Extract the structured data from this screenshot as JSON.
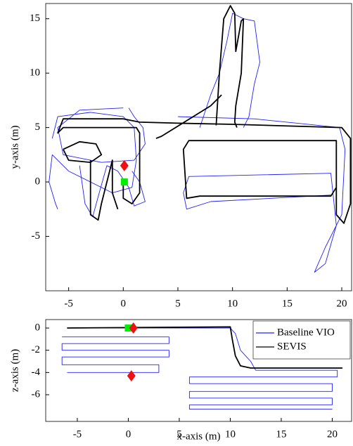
{
  "chart_data": [
    {
      "type": "line",
      "ylabel": "y-axis (m)",
      "xlim": [
        -7.1,
        20.9
      ],
      "ylim": [
        -10,
        16.4
      ],
      "xticks": [
        -5,
        0,
        5,
        10,
        15,
        20
      ],
      "yticks": [
        -5,
        0,
        5,
        10,
        15
      ],
      "series": [
        {
          "color": "#2020ff",
          "x": [
            -6.5,
            -6,
            -3,
            0,
            1,
            1.2,
            0.8,
            -1,
            -5,
            -6.5,
            -6.8,
            -6.2,
            -6,
            null,
            0,
            -4,
            -6,
            -5.5,
            -2,
            1,
            2,
            1.8,
            1,
            0.5,
            null,
            5,
            12,
            19.8,
            20.3,
            20,
            18.5,
            17.5,
            18.5,
            19.5,
            19,
            6,
            5.5,
            5.8,
            8,
            19,
            null,
            7,
            8,
            8.8,
            9.5,
            10,
            11,
            12,
            12.5,
            12,
            11.5,
            11,
            null,
            -4,
            -3.5,
            -2.8,
            -2.2,
            -1.5,
            -0.5,
            0.5,
            1,
            2,
            1.5,
            0.8
          ],
          "y": [
            4,
            6,
            6.4,
            6,
            5,
            2,
            -0.5,
            -1,
            1,
            2.5,
            0,
            -2,
            -2.5,
            null,
            6.8,
            6.6,
            5,
            2.5,
            1.8,
            2,
            3.5,
            5,
            6,
            6.8,
            null,
            6,
            5.8,
            5,
            3,
            -3,
            -6,
            -8.3,
            -7.5,
            -4,
            0.8,
            0.5,
            -1,
            -2.5,
            -1.8,
            -1.2,
            null,
            5,
            8,
            10,
            13,
            15.5,
            15,
            14.8,
            11,
            9,
            6,
            5,
            null,
            1.5,
            -2,
            -3.2,
            -1,
            1.5,
            1,
            -0.5,
            -2.2,
            -1.8,
            0,
            1
          ]
        },
        {
          "color": "#000000",
          "x": [
            0,
            0,
            0.8,
            1.5,
            1.5,
            1.2,
            -5.5,
            -6,
            -5.5,
            0,
            1.5,
            5,
            10,
            20,
            20.8,
            20.8,
            20.2,
            19.5,
            19.5,
            6,
            5.5,
            5.8,
            7,
            19,
            19.5,
            null,
            8.5,
            8.8,
            9.2,
            9.8,
            10.2,
            10.3,
            10.8,
            11,
            10.8,
            10.3,
            10.2,
            10.4,
            null,
            -5.5,
            -4,
            -2.5,
            -2,
            -3,
            -5,
            -5.5,
            null,
            -3,
            -3,
            -2.3,
            -2,
            -1.5,
            -1,
            -1,
            -0.5,
            null,
            3,
            3.5,
            8,
            9
          ],
          "y": [
            0,
            -1.5,
            -2,
            -1,
            4.5,
            5,
            5,
            4.5,
            5.8,
            5.8,
            5.5,
            5.4,
            5.3,
            5,
            4,
            -2,
            -3.8,
            -3,
            3.8,
            3.8,
            3,
            -1.5,
            -1.3,
            -1.3,
            -0.5,
            null,
            5.2,
            10,
            15,
            16.2,
            15.5,
            12,
            14.8,
            15,
            10,
            7,
            5.5,
            5,
            null,
            3,
            3.7,
            3.5,
            2.5,
            1.8,
            2,
            3,
            null,
            2,
            -3,
            -3.5,
            -2,
            0,
            2,
            -1,
            -2.5,
            null,
            4,
            4.2,
            7,
            8
          ]
        }
      ],
      "markers": [
        {
          "shape": "square",
          "color": "#00ee00",
          "x": 0.1,
          "y": 0
        },
        {
          "shape": "diamond",
          "color": "#ee1111",
          "x": 0.1,
          "y": 1.5
        }
      ]
    },
    {
      "type": "line",
      "xlabel": "x-axis (m)",
      "ylabel": "z-axis (m)",
      "xlim": [
        -8.1,
        21.9
      ],
      "ylim": [
        -8.4,
        0.76
      ],
      "xticks": [
        -5,
        0,
        5,
        10,
        15,
        20
      ],
      "yticks": [
        -6,
        -4,
        -2,
        0
      ],
      "legend": "upper right",
      "series": [
        {
          "name": "Baseline VIO",
          "color": "#2020ff",
          "x": [
            -6.5,
            4,
            4,
            -6.5,
            -6.5,
            4,
            4,
            -6.5,
            -6.5,
            3,
            3,
            -6,
            null,
            -6,
            10,
            10.5,
            11,
            12,
            12.5,
            20.5,
            20.5,
            6,
            6,
            20,
            20,
            6,
            6,
            20,
            20,
            6,
            6,
            20
          ],
          "y": [
            -0.8,
            -0.8,
            -1.4,
            -1.4,
            -2,
            -2,
            -2.6,
            -2.6,
            -3.3,
            -3.3,
            -4,
            -4,
            null,
            0,
            0,
            -0.5,
            -2,
            -3,
            -3.8,
            -3.8,
            -4.4,
            -4.4,
            -5,
            -5,
            -5.7,
            -5.7,
            -6.3,
            -6.3,
            -6.9,
            -6.9,
            -7.3,
            -7.3
          ]
        },
        {
          "name": "SEVIS",
          "color": "#000000",
          "x": [
            -6,
            10,
            10.2,
            10.5,
            11,
            12,
            21
          ],
          "y": [
            0,
            0.1,
            -1,
            -2.5,
            -3.4,
            -3.6,
            -3.6
          ]
        }
      ],
      "markers": [
        {
          "shape": "square",
          "color": "#00ee00",
          "x": 0,
          "y": 0
        },
        {
          "shape": "diamond",
          "color": "#ee1111",
          "x": 0.5,
          "y": 0
        },
        {
          "shape": "diamond",
          "color": "#ee1111",
          "x": 0.3,
          "y": -4.3
        }
      ]
    }
  ]
}
